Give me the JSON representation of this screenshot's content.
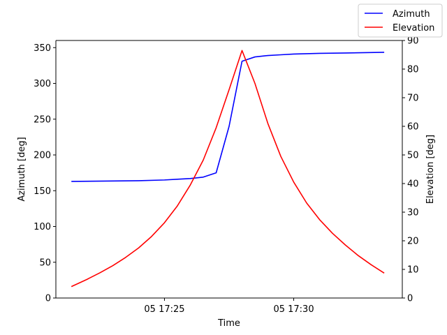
{
  "chart_data": {
    "type": "line",
    "xlabel": "Time",
    "x_tick_labels": [
      {
        "minutes": 25,
        "label": "05 17:25"
      },
      {
        "minutes": 30,
        "label": "05 17:30"
      }
    ],
    "xlim_minutes": [
      20.8,
      34.2
    ],
    "left_axis": {
      "label": "Azimuth [deg]",
      "ylim": [
        0,
        360
      ],
      "ticks": [
        0,
        50,
        100,
        150,
        200,
        250,
        300,
        350
      ]
    },
    "right_axis": {
      "label": "Elevation [deg]",
      "ylim": [
        0,
        90
      ],
      "ticks": [
        0,
        10,
        20,
        30,
        40,
        50,
        60,
        70,
        80,
        90
      ]
    },
    "legend_position": "top-right",
    "series": [
      {
        "name": "Azimuth",
        "axis": "left",
        "color": "#0000ff",
        "x_minutes": [
          21.4,
          24.0,
          25.0,
          25.5,
          26.0,
          26.5,
          27.0,
          27.5,
          28.0,
          28.5,
          29.0,
          29.5,
          30.0,
          31.0,
          32.0,
          33.5
        ],
        "y": [
          163,
          164,
          165,
          166,
          167,
          169,
          175,
          240,
          331,
          337,
          339,
          340,
          341,
          342,
          342.5,
          343.5
        ]
      },
      {
        "name": "Elevation",
        "axis": "right",
        "color": "#ff0000",
        "x_minutes": [
          21.4,
          22.0,
          22.5,
          23.0,
          23.5,
          24.0,
          24.5,
          25.0,
          25.5,
          26.0,
          26.5,
          27.0,
          27.5,
          28.0,
          28.5,
          29.0,
          29.5,
          30.0,
          30.5,
          31.0,
          31.5,
          32.0,
          32.5,
          33.0,
          33.5
        ],
        "y": [
          4,
          6.5,
          8.8,
          11.3,
          14.2,
          17.5,
          21.5,
          26.3,
          32.2,
          39.5,
          48.2,
          59.5,
          72.8,
          86.5,
          75,
          61,
          49.5,
          40.5,
          33.2,
          27.4,
          22.6,
          18.5,
          14.8,
          11.6,
          8.7
        ]
      }
    ]
  }
}
